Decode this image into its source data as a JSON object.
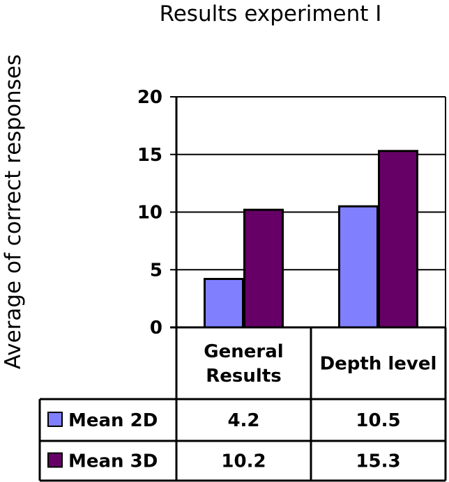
{
  "chart_data": {
    "type": "bar",
    "title": "Results experiment I",
    "ylabel": "Average of correct responses",
    "xlabel": "",
    "categories": [
      [
        "General",
        "Results"
      ],
      [
        "Depth level"
      ]
    ],
    "series": [
      {
        "name": "Mean 2D",
        "color": "#8080ff",
        "values": [
          4.2,
          10.5
        ],
        "labels": [
          "4.2",
          "10.5"
        ]
      },
      {
        "name": "Mean 3D",
        "color": "#660066",
        "values": [
          10.2,
          15.3
        ],
        "labels": [
          "10.2",
          "15.3"
        ]
      }
    ],
    "ylim": [
      0,
      20
    ],
    "yticks": [
      0,
      5,
      10,
      15,
      20
    ],
    "grid": "horizontal",
    "legend": "data-table"
  }
}
